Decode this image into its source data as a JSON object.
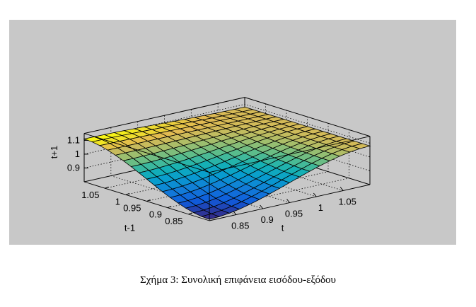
{
  "chart_data": {
    "type": "surface3d",
    "title": "",
    "xlabel": "t",
    "ylabel": "t-1",
    "zlabel": "t+1",
    "x_range": [
      0.8,
      1.1
    ],
    "y_range": [
      0.8,
      1.1
    ],
    "z_range": [
      0.8,
      1.15
    ],
    "x_ticks": [
      0.85,
      0.9,
      0.95,
      1,
      1.05
    ],
    "y_ticks": [
      0.85,
      0.9,
      0.95,
      1,
      1.05
    ],
    "z_ticks": [
      0.9,
      1,
      1.1
    ],
    "x_tick_labels": [
      "0.85",
      "0.9",
      "0.95",
      "1",
      "1.05"
    ],
    "y_tick_labels": [
      "0.85",
      "0.9",
      "0.95",
      "1",
      "1.05"
    ],
    "z_tick_labels": [
      "0.9",
      "1",
      "1.1"
    ],
    "grid": true,
    "colormap": "parula",
    "grid_size": 16,
    "corner_values": {
      "t_low_tm1_low": 0.81,
      "t_high_tm1_low": 1.08,
      "t_low_tm1_high": 1.11,
      "t_high_tm1_high": 1.08
    }
  },
  "caption": "Σχήμα 3: Συνολική επιφάνεια εισόδου-εξόδου"
}
